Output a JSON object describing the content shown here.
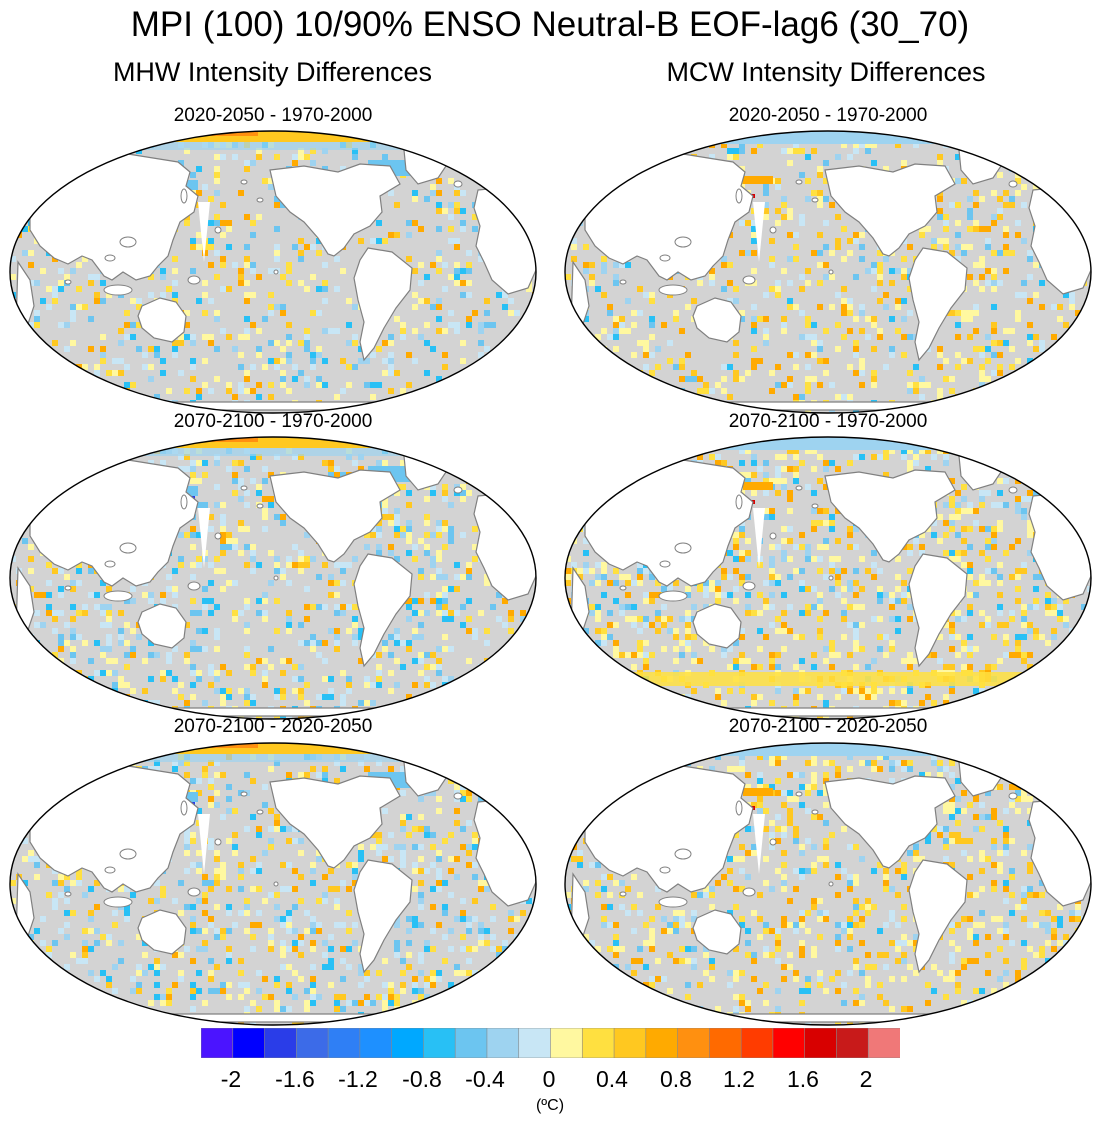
{
  "title": "MPI (100) 10/90% ENSO Neutral-B EOF-lag6 (30_70)",
  "columns": [
    {
      "title": "MHW Intensity Differences"
    },
    {
      "title": "MCW Intensity Differences"
    }
  ],
  "panels": [
    {
      "column": "MHW",
      "title": "2020-2050 - 1970-2000"
    },
    {
      "column": "MCW",
      "title": "2020-2050 - 1970-2000"
    },
    {
      "column": "MHW",
      "title": "2070-2100 - 1970-2000"
    },
    {
      "column": "MCW",
      "title": "2070-2100 - 1970-2000"
    },
    {
      "column": "MHW",
      "title": "2070-2100 - 2020-2050"
    },
    {
      "column": "MCW",
      "title": "2070-2100 - 2020-2050"
    }
  ],
  "colorbar": {
    "colors": [
      "#4b14ff",
      "#0000ff",
      "#2a3de8",
      "#3c6be8",
      "#2f7ff5",
      "#1e90ff",
      "#00a8ff",
      "#28c0f5",
      "#6cc5f0",
      "#9ed3f0",
      "#c8e6f5",
      "#fff8a0",
      "#ffe040",
      "#ffc820",
      "#ffaa00",
      "#ff9010",
      "#ff6a00",
      "#ff3c00",
      "#ff0000",
      "#d80000",
      "#c81a1a",
      "#f07878"
    ],
    "tick_labels": [
      "-2",
      "-1.6",
      "-1.2",
      "-0.8",
      "-0.4",
      "0",
      "0.4",
      "0.8",
      "1.2",
      "1.6",
      "2"
    ],
    "units": "(ºC)"
  },
  "map_colors": {
    "ocean_neutral": "#d3d3d3",
    "land": "#ffffff",
    "coast": "#808080"
  }
}
